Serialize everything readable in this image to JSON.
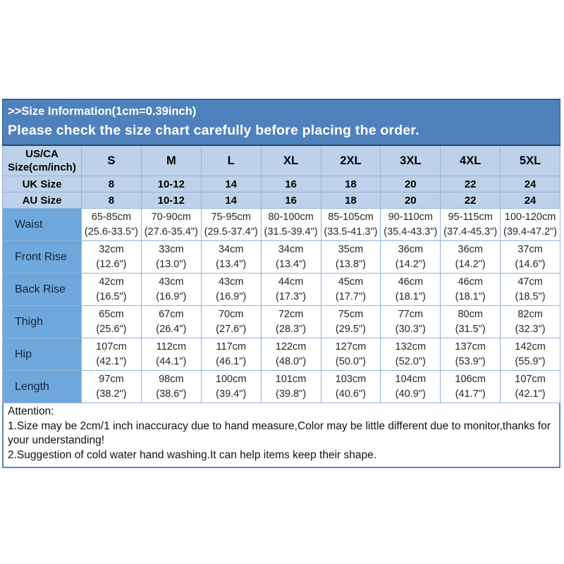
{
  "banner": {
    "line1": ">>Size Information(1cm=0.39inch)",
    "line2": "Please check the size chart carefully before placing the order."
  },
  "table": {
    "corner": {
      "line1": "US/CA",
      "line2": "Size(cm/inch)"
    },
    "sizes": [
      "S",
      "M",
      "L",
      "XL",
      "2XL",
      "3XL",
      "4XL",
      "5XL"
    ],
    "uk": {
      "label": "UK Size",
      "values": [
        "8",
        "10-12",
        "14",
        "16",
        "18",
        "20",
        "22",
        "24"
      ]
    },
    "au": {
      "label": "AU Size",
      "values": [
        "8",
        "10-12",
        "14",
        "16",
        "18",
        "20",
        "22",
        "24"
      ]
    },
    "measurements": [
      {
        "label": "Waist",
        "cm": [
          "65-85cm",
          "70-90cm",
          "75-95cm",
          "80-100cm",
          "85-105cm",
          "90-110cm",
          "95-115cm",
          "100-120cm"
        ],
        "inch": [
          "(25.6-33.5\")",
          "(27.6-35.4\")",
          "(29.5-37.4\")",
          "(31.5-39.4\")",
          "(33.5-41.3\")",
          "(35.4-43.3\")",
          "(37.4-45.3\")",
          "(39.4-47.2\")"
        ]
      },
      {
        "label": "Front Rise",
        "cm": [
          "32cm",
          "33cm",
          "34cm",
          "34cm",
          "35cm",
          "36cm",
          "36cm",
          "37cm"
        ],
        "inch": [
          "(12.6\")",
          "(13.0\")",
          "(13.4\")",
          "(13.4\")",
          "(13.8\")",
          "(14.2\")",
          "(14.2\")",
          "(14.6\")"
        ]
      },
      {
        "label": "Back Rise",
        "cm": [
          "42cm",
          "43cm",
          "43cm",
          "44cm",
          "45cm",
          "46cm",
          "46cm",
          "47cm"
        ],
        "inch": [
          "(16.5\")",
          "(16.9\")",
          "(16.9\")",
          "(17.3\")",
          "(17.7\")",
          "(18.1\")",
          "(18.1\")",
          "(18.5\")"
        ]
      },
      {
        "label": "Thigh",
        "cm": [
          "65cm",
          "67cm",
          "70cm",
          "72cm",
          "75cm",
          "77cm",
          "80cm",
          "82cm"
        ],
        "inch": [
          "(25.6\")",
          "(26.4\")",
          "(27.6\")",
          "(28.3\")",
          "(29.5\")",
          "(30.3\")",
          "(31.5\")",
          "(32.3\")"
        ]
      },
      {
        "label": "Hip",
        "cm": [
          "107cm",
          "112cm",
          "117cm",
          "122cm",
          "127cm",
          "132cm",
          "137cm",
          "142cm"
        ],
        "inch": [
          "(42.1\")",
          "(44.1\")",
          "(46.1\")",
          "(48.0\")",
          "(50.0\")",
          "(52.0\")",
          "(53.9\")",
          "(55.9\")"
        ]
      },
      {
        "label": "Length",
        "cm": [
          "97cm",
          "98cm",
          "100cm",
          "101cm",
          "103cm",
          "104cm",
          "106cm",
          "107cm"
        ],
        "inch": [
          "(38.2\")",
          "(38.6\")",
          "(39.4\")",
          "(39.8\")",
          "(40.6\")",
          "(40.9\")",
          "(41.7\")",
          "(42.1\")"
        ]
      }
    ]
  },
  "attention": {
    "title": "Attention:",
    "line1": "1.Size may be 2cm/1 inch inaccuracy due to hand measure,Color may be little different due to monitor,thanks for your understanding!",
    "line2": "2.Suggestion of cold water hand washing.It can help items keep their shape."
  },
  "colors": {
    "banner_bg": "#4f81bd",
    "header_row_bg": "#bdd2ea",
    "measure_label_bg": "#6fa8dc",
    "grid_border": "#95b3d7",
    "banner_text": "#ffffff",
    "table_text": "#111111"
  }
}
